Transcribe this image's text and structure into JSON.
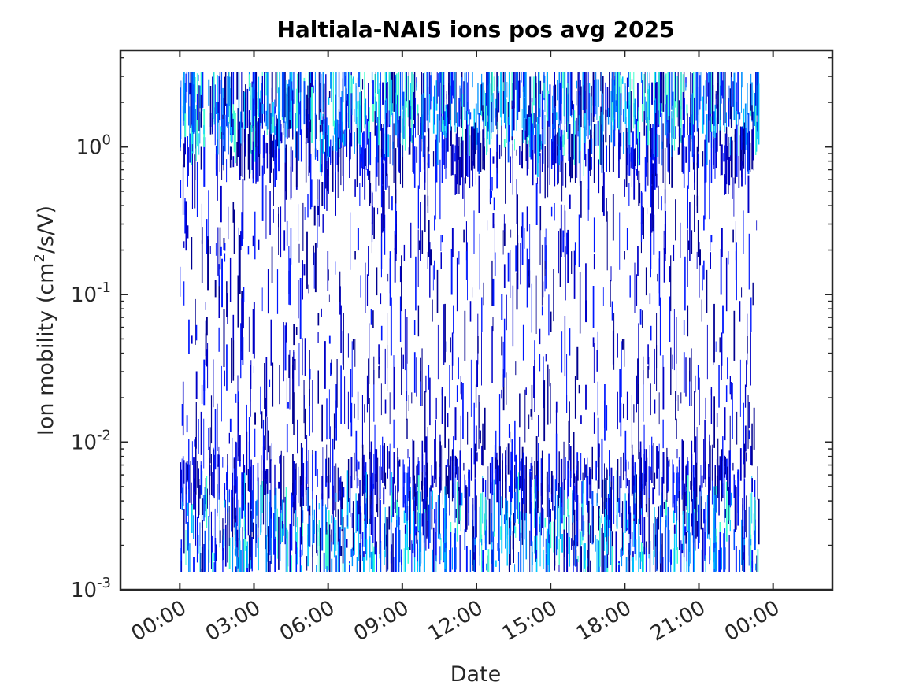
{
  "chart_data": {
    "type": "heatmap",
    "title": "Haltiala-NAIS ions pos avg 2025",
    "xlabel": "Date",
    "ylabel_prefix": "Ion mobility (cm",
    "ylabel_sup": "2",
    "ylabel_suffix": "/s/V)",
    "x_ticks": [
      "00:00",
      "03:00",
      "06:00",
      "09:00",
      "12:00",
      "15:00",
      "18:00",
      "21:00",
      "00:00"
    ],
    "x_tick_hours": [
      0,
      3,
      6,
      9,
      12,
      15,
      18,
      21,
      24
    ],
    "xlim_hours": [
      -2.4,
      26.4
    ],
    "y_ticks": [
      {
        "base": "10",
        "exp": "0",
        "value": 1
      },
      {
        "base": "10",
        "exp": "-1",
        "value": 0.1
      },
      {
        "base": "10",
        "exp": "-2",
        "value": 0.01
      },
      {
        "base": "10",
        "exp": "-3",
        "value": 0.001
      }
    ],
    "y_scale": "log",
    "ylim": [
      0.001,
      4.5
    ],
    "data_extent": {
      "x_hours": [
        0,
        23.4
      ],
      "y": [
        0.00132,
        3.2
      ]
    },
    "colors": [
      "#00008f",
      "#0000c8",
      "#0018ff",
      "#0050ff",
      "#0090ff",
      "#00c8ff",
      "#40ffd0"
    ],
    "grid": false,
    "legend": "none"
  }
}
